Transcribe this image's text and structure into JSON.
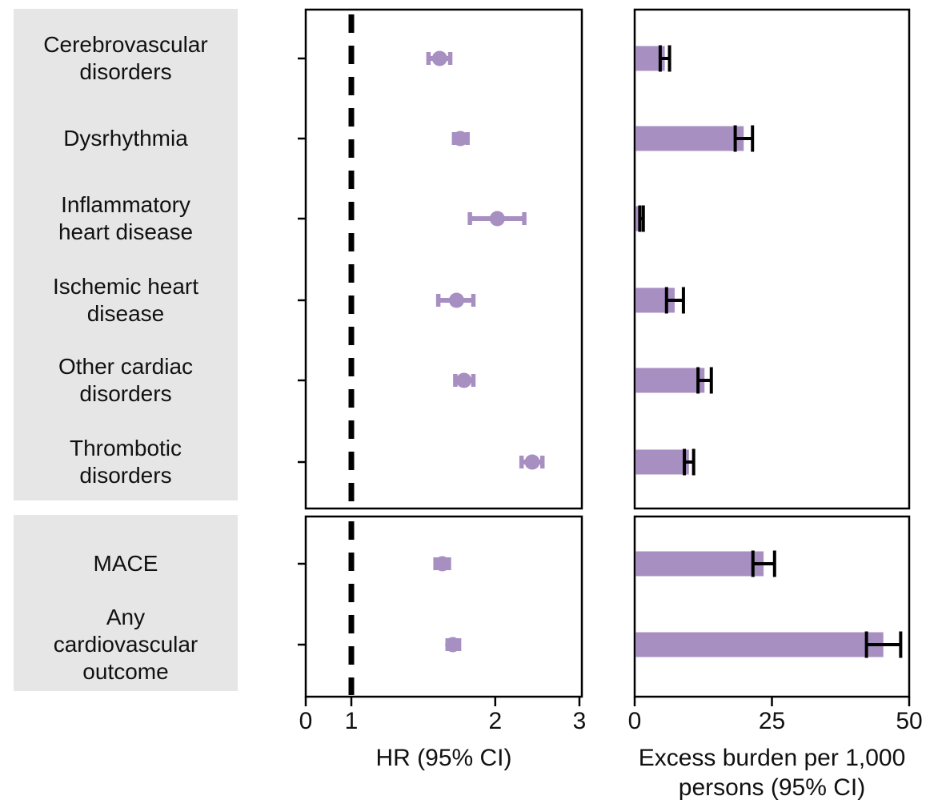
{
  "figure_title": "",
  "colors": {
    "point": "#a78fc2",
    "bar": "#a78fc2",
    "error": "#000000",
    "axis": "#000000",
    "label_bg": "#e6e6e6",
    "text": "#111111"
  },
  "chart_data": {
    "type": "forest",
    "description": "Two-panel forest plot: hazard ratios (dot + 95% CI) and excess burden per 1,000 persons (bar + 95% CI) for cardiovascular outcome composites",
    "hr_panel": {
      "xlabel": "HR (95% CI)",
      "ticks": [
        0,
        1,
        2,
        3
      ],
      "scale": "log above 1; 0 label sits at axis origin",
      "ref_line": 1
    },
    "burden_panel": {
      "xlabel_lines": [
        "Excess burden per 1,000",
        "persons (95% CI)"
      ],
      "ticks": [
        0,
        25,
        50
      ],
      "xlim": [
        0,
        50
      ]
    },
    "groups": [
      {
        "rows": [
          {
            "label_lines": [
              "Cerebrovascular",
              "disorders"
            ],
            "hr": 1.53,
            "hr_ci": [
              1.45,
              1.61
            ],
            "burden": 5.48,
            "burden_ci": [
              4.65,
              6.35
            ]
          },
          {
            "label_lines": [
              "Dysrhythmia"
            ],
            "hr": 1.69,
            "hr_ci": [
              1.64,
              1.75
            ],
            "burden": 19.86,
            "burden_ci": [
              18.31,
              21.46
            ]
          },
          {
            "label_lines": [
              "Inflammatory",
              "heart disease"
            ],
            "hr": 2.02,
            "hr_ci": [
              1.77,
              2.3
            ],
            "burden": 1.23,
            "burden_ci": [
              0.93,
              1.57
            ]
          },
          {
            "label_lines": [
              "Ischemic heart",
              "disease"
            ],
            "hr": 1.66,
            "hr_ci": [
              1.52,
              1.8
            ],
            "burden": 7.28,
            "burden_ci": [
              5.8,
              8.88
            ]
          },
          {
            "label_lines": [
              "Other cardiac",
              "disorders"
            ],
            "hr": 1.72,
            "hr_ci": [
              1.65,
              1.8
            ],
            "burden": 12.72,
            "burden_ci": [
              11.54,
              13.96
            ]
          },
          {
            "label_lines": [
              "Thrombotic",
              "disorders"
            ],
            "hr": 2.39,
            "hr_ci": [
              2.27,
              2.51
            ],
            "burden": 9.88,
            "burden_ci": [
              9.05,
              10.74
            ]
          }
        ]
      },
      {
        "rows": [
          {
            "label_lines": [
              "MACE"
            ],
            "hr": 1.55,
            "hr_ci": [
              1.5,
              1.6
            ],
            "burden": 23.48,
            "burden_ci": [
              21.54,
              25.48
            ]
          },
          {
            "label_lines": [
              "Any",
              "cardiovascular",
              "outcome"
            ],
            "hr": 1.63,
            "hr_ci": [
              1.59,
              1.68
            ],
            "burden": 45.29,
            "burden_ci": [
              42.22,
              48.45
            ]
          }
        ]
      }
    ]
  }
}
